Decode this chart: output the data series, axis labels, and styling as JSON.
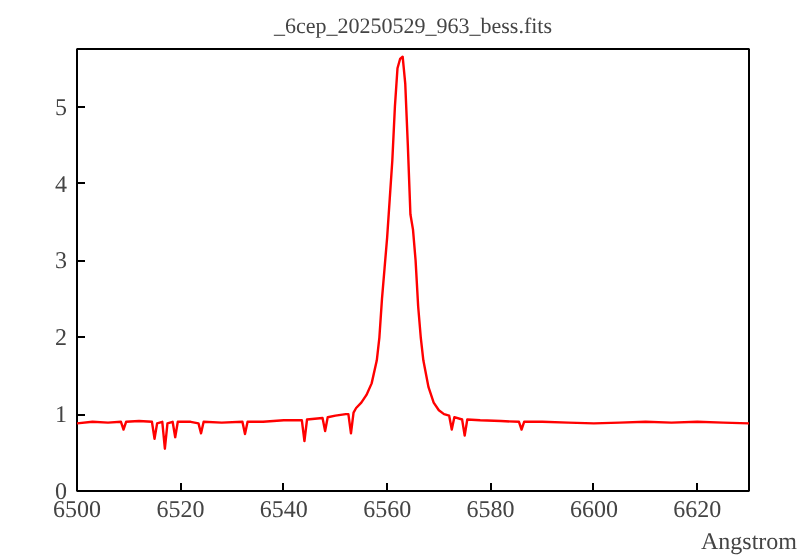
{
  "chart_data": {
    "type": "line",
    "title": "_6cep_20250529_963_bess.fits",
    "xlabel": "Angstrom",
    "xlim": [
      6500,
      6630
    ],
    "ylim": [
      0,
      5.75
    ],
    "xticks": [
      6500,
      6520,
      6540,
      6560,
      6580,
      6600,
      6620
    ],
    "yticks": [
      0,
      1,
      2,
      3,
      4,
      5
    ],
    "grid": false,
    "marker": "none",
    "line_style": "solid",
    "series": [
      {
        "color": "#ff0000",
        "x": [
          6500,
          6503,
          6506,
          6508.5,
          6509,
          6509.5,
          6512,
          6514.5,
          6515,
          6515.5,
          6516.5,
          6517,
          6517.5,
          6518.5,
          6519,
          6519.5,
          6522,
          6523.5,
          6524,
          6524.5,
          6528,
          6532,
          6532.5,
          6533,
          6536,
          6540,
          6543.5,
          6544,
          6544.5,
          6547.5,
          6548,
          6548.5,
          6550,
          6552,
          6552.5,
          6553,
          6553.5,
          6554,
          6555,
          6556,
          6557,
          6558,
          6558.5,
          6559,
          6559.5,
          6560,
          6560.5,
          6561,
          6561.5,
          6562,
          6562.5,
          6563,
          6563.5,
          6564,
          6564.5,
          6565,
          6565.5,
          6566,
          6566.5,
          6567,
          6568,
          6569,
          6570,
          6571,
          6572,
          6572.5,
          6573,
          6574.5,
          6575,
          6575.5,
          6578,
          6582,
          6585.5,
          6586,
          6586.5,
          6590,
          6595,
          6600,
          6605,
          6610,
          6615,
          6620,
          6625,
          6630
        ],
        "values": [
          0.88,
          0.9,
          0.89,
          0.9,
          0.8,
          0.9,
          0.91,
          0.9,
          0.68,
          0.88,
          0.9,
          0.55,
          0.88,
          0.9,
          0.7,
          0.9,
          0.9,
          0.88,
          0.75,
          0.9,
          0.89,
          0.9,
          0.74,
          0.9,
          0.9,
          0.92,
          0.92,
          0.65,
          0.93,
          0.95,
          0.78,
          0.96,
          0.98,
          1.0,
          1.0,
          0.75,
          1.02,
          1.08,
          1.15,
          1.25,
          1.4,
          1.7,
          2.0,
          2.5,
          2.9,
          3.3,
          3.8,
          4.3,
          5.0,
          5.5,
          5.62,
          5.65,
          5.3,
          4.5,
          3.6,
          3.4,
          3.0,
          2.4,
          2.0,
          1.7,
          1.35,
          1.15,
          1.05,
          1.0,
          0.98,
          0.8,
          0.96,
          0.93,
          0.72,
          0.93,
          0.92,
          0.91,
          0.9,
          0.8,
          0.9,
          0.9,
          0.89,
          0.88,
          0.89,
          0.9,
          0.89,
          0.9,
          0.89,
          0.88
        ]
      }
    ]
  }
}
